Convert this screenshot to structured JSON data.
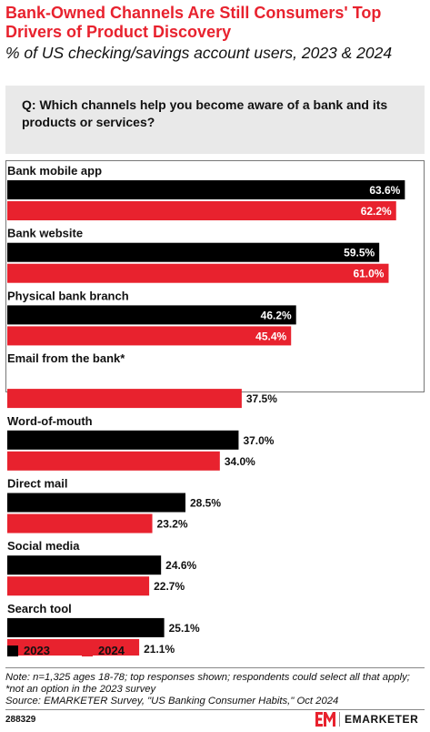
{
  "title": "Bank-Owned Channels Are Still Consumers' Top Drivers of Product Discovery",
  "subtitle": "% of US checking/savings account users, 2023 & 2024",
  "question": "Q: Which channels help you become aware of a bank and its products or services?",
  "notes": [
    "Note: n=1,325 ages 18-78; top responses shown; respondents could select all that apply;",
    "*not an option in the 2023 survey",
    "Source: EMARKETER Survey, \"US Banking Consumer Habits,\" Oct 2024"
  ],
  "chart_id": "288329",
  "brand": {
    "name": "EMARKETER",
    "colors": {
      "primary": "#e8222e",
      "dark": "#000000"
    }
  },
  "chart_data": {
    "type": "bar",
    "orientation": "horizontal",
    "title": "Bank-Owned Channels Are Still Consumers' Top Drivers of Product Discovery",
    "subtitle": "% of US checking/savings account users, 2023 & 2024",
    "categories": [
      "Bank mobile app",
      "Bank website",
      "Physical bank branch",
      "Email from the bank*",
      "Word-of-mouth",
      "Direct mail",
      "Social media",
      "Search tool"
    ],
    "series": [
      {
        "name": "2023",
        "color": "#000000",
        "values": [
          63.6,
          59.5,
          46.2,
          null,
          37.0,
          28.5,
          24.6,
          25.1
        ]
      },
      {
        "name": "2024",
        "color": "#e8222e",
        "values": [
          62.2,
          61.0,
          45.4,
          37.5,
          34.0,
          23.2,
          22.7,
          21.1
        ]
      }
    ],
    "highlighted_categories": [
      "Bank mobile app",
      "Bank website",
      "Physical bank branch",
      "Email from the bank*"
    ],
    "value_suffix": "%",
    "xlim": [
      0,
      65
    ],
    "grid": false,
    "legend_position": "bottom-left"
  }
}
